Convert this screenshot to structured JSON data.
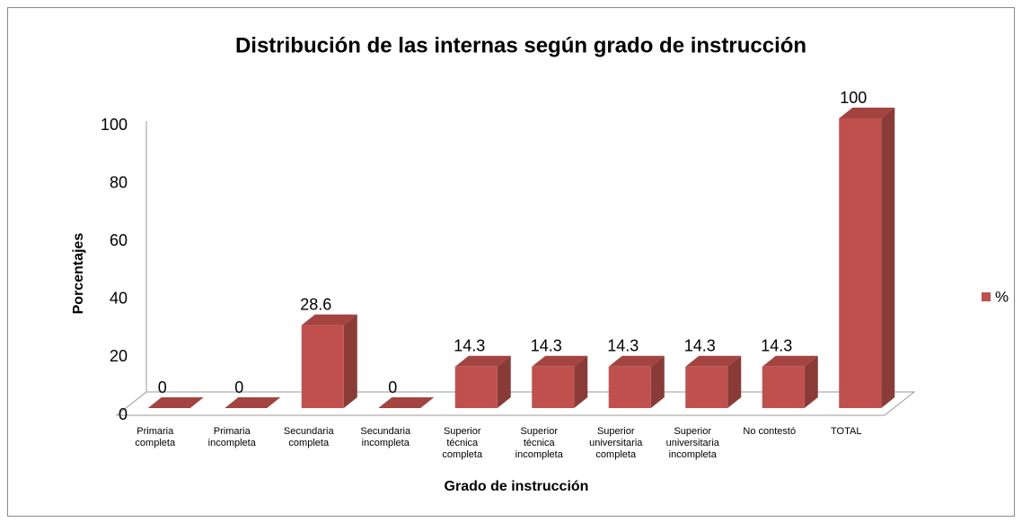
{
  "chart_data": {
    "type": "bar3d",
    "title": "Distribución de las internas según grado de instrucción",
    "xlabel": "Grado de instrucción",
    "ylabel": "Porcentajes",
    "categories": [
      "Primaria completa",
      "Primaria incompleta",
      "Secundaria completa",
      "Secundaria incompleta",
      "Superior técnica completa",
      "Superior técnica incompleta",
      "Superior universitaria completa",
      "Superior universitaria incompleta",
      "No contestó",
      "TOTAL"
    ],
    "series": [
      {
        "name": "%",
        "color": "#c0504d",
        "values": [
          0,
          0,
          28.6,
          0,
          14.3,
          14.3,
          14.3,
          14.3,
          14.3,
          100
        ]
      }
    ],
    "ylim": [
      0,
      100
    ],
    "yticks": [
      0,
      20,
      40,
      60,
      80,
      100
    ],
    "legend": "right",
    "grid": false
  }
}
